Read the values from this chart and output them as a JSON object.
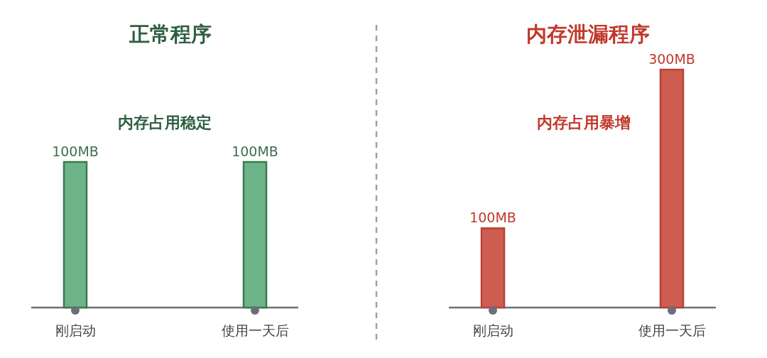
{
  "chart_data": [
    {
      "type": "bar",
      "title": "正常程序",
      "annotations": [
        "内存占用稳定"
      ],
      "categories": [
        "刚启动",
        "使用一天后"
      ],
      "color": "#6db588",
      "values": [
        100,
        100
      ],
      "value_labels": [
        "100MB",
        "100MB"
      ]
    },
    {
      "type": "bar",
      "title": "内存泄漏程序",
      "annotations": [
        "内存占用暴增"
      ],
      "categories": [
        "刚启动",
        "使用一天后"
      ],
      "color": "#cd5c51",
      "values": [
        100,
        300
      ],
      "value_labels": [
        "100MB",
        "300MB"
      ]
    }
  ]
}
